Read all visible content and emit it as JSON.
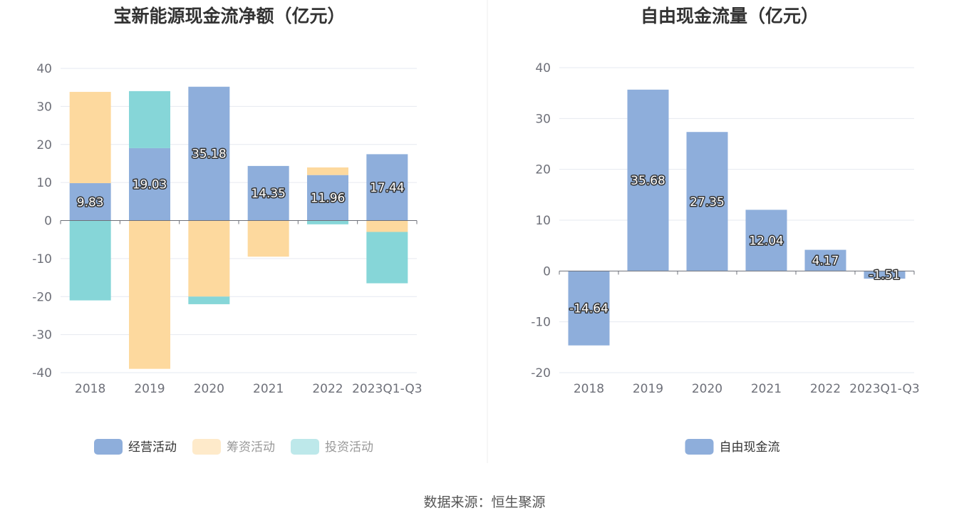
{
  "chart_data": [
    {
      "type": "bar",
      "stacked": true,
      "title": "宝新能源现金流净额（亿元）",
      "categories": [
        "2018",
        "2019",
        "2020",
        "2021",
        "2022",
        "2023Q1-Q3"
      ],
      "ylim": [
        -40,
        40
      ],
      "yticks": [
        40,
        30,
        20,
        10,
        0,
        -10,
        -20,
        -30,
        -40
      ],
      "series": [
        {
          "name": "经营活动",
          "color": "#8eaedb",
          "values": [
            9.83,
            19.03,
            35.18,
            14.35,
            11.96,
            17.44
          ],
          "labels": [
            "9.83",
            "19.03",
            "35.18",
            "14.35",
            "11.96",
            "17.44"
          ]
        },
        {
          "name": "筹资活动",
          "color": "#fdd99e",
          "values": [
            24.0,
            -39.0,
            -20.0,
            -9.5,
            2.0,
            -3.0
          ]
        },
        {
          "name": "投资活动",
          "color": "#86d6d8",
          "values": [
            -21.0,
            15.0,
            -2.0,
            0.0,
            -1.0,
            -13.5
          ]
        }
      ],
      "grid": true,
      "legend_position": "bottom-center"
    },
    {
      "type": "bar",
      "title": "自由现金流量（亿元）",
      "categories": [
        "2018",
        "2019",
        "2020",
        "2021",
        "2022",
        "2023Q1-Q3"
      ],
      "ylim": [
        -20,
        40
      ],
      "yticks": [
        40,
        30,
        20,
        10,
        0,
        -10,
        -20
      ],
      "series": [
        {
          "name": "自由现金流",
          "color": "#8eaedb",
          "values": [
            -14.64,
            35.68,
            27.35,
            12.04,
            4.17,
            -1.51
          ],
          "labels": [
            "-14.64",
            "35.68",
            "27.35",
            "12.04",
            "4.17",
            "-1.51"
          ]
        }
      ],
      "grid": true,
      "legend_position": "bottom-center"
    }
  ],
  "source_text": "数据来源：恒生聚源"
}
